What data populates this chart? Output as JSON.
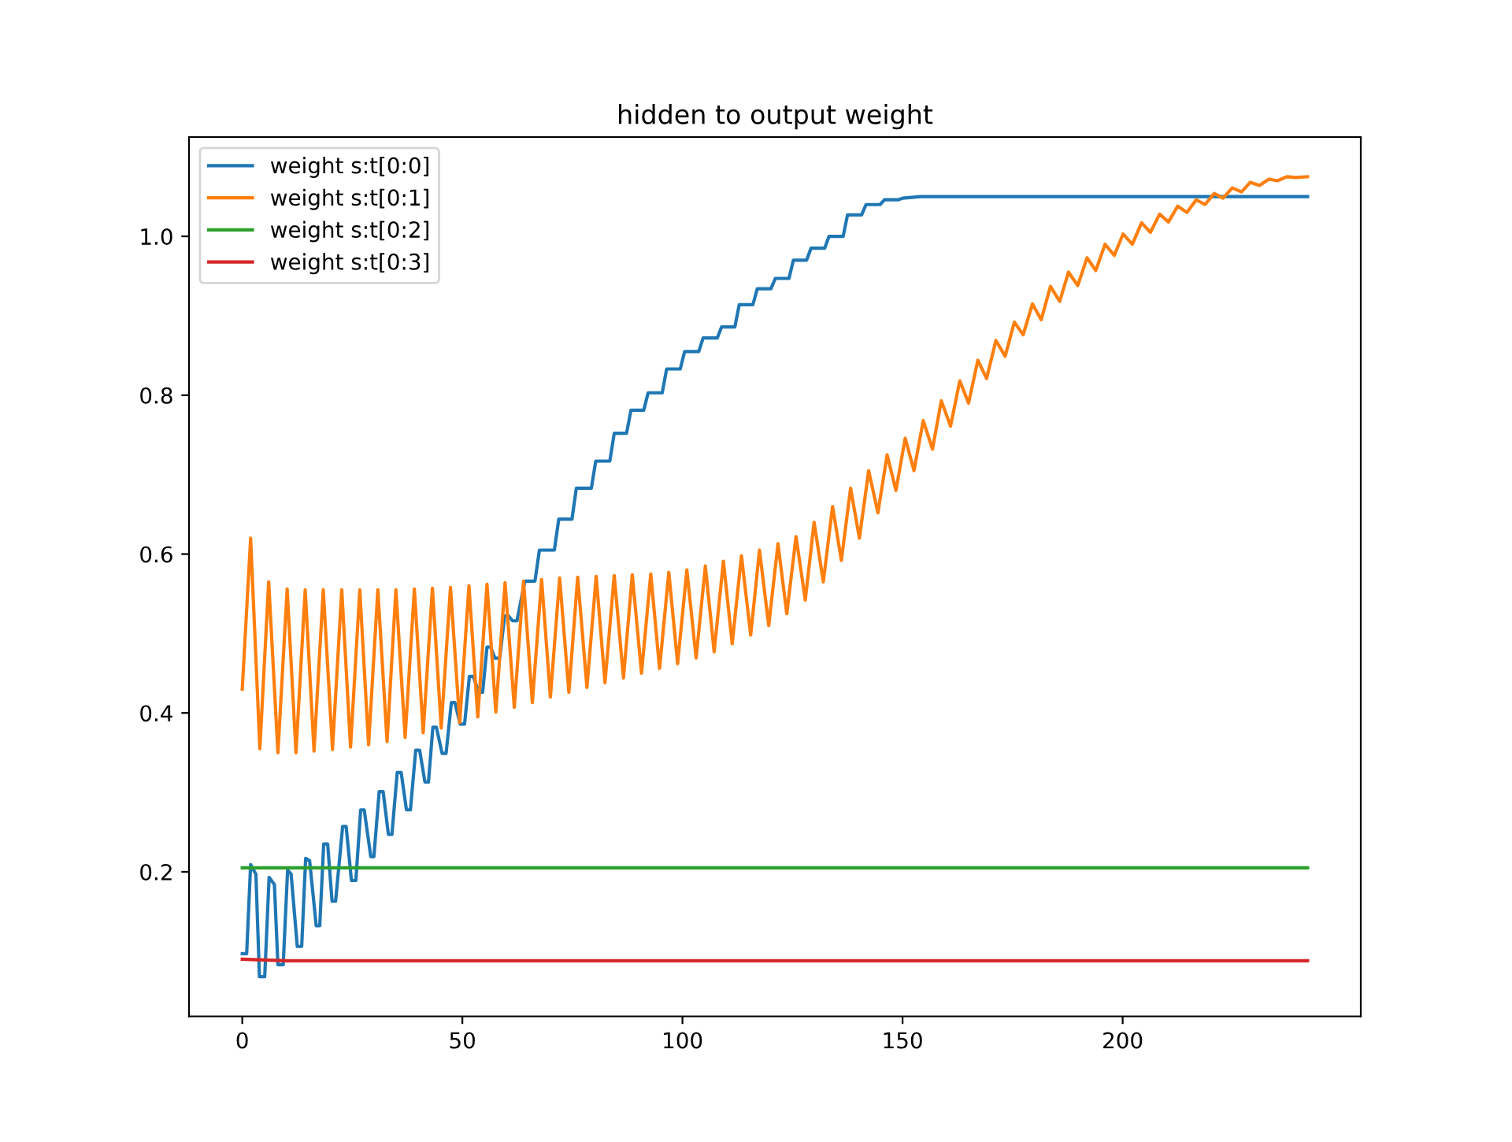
{
  "chart_data": {
    "type": "line",
    "title": "hidden to output weight",
    "xlim": [
      -12.1,
      254.1
    ],
    "ylim": [
      0.018,
      1.125
    ],
    "xticks": [
      0,
      50,
      100,
      150,
      200
    ],
    "yticks": [
      0.2,
      0.4,
      0.6,
      0.8,
      {
        "value": 1,
        "label": "1.0"
      }
    ],
    "grid": false,
    "legend": "top left",
    "marker": "none",
    "line_style": "solid",
    "series": [
      {
        "name": "weight s:t[0:0]",
        "color": "#1f77b4",
        "x": [
          0,
          1,
          1.9,
          3.1,
          3.9,
          5.1,
          6.1,
          7.3,
          8.1,
          9.3,
          10.3,
          11.1,
          12.5,
          13.5,
          14.4,
          15.3,
          16.8,
          17.6,
          18.5,
          19.4,
          20.4,
          21.2,
          22.8,
          23.6,
          24.8,
          25.8,
          26.9,
          27.7,
          29.2,
          29.9,
          31.1,
          32,
          33.2,
          34,
          35.2,
          36.1,
          37.3,
          38.2,
          39.4,
          40.3,
          41.5,
          42.3,
          43.3,
          44.1,
          45.4,
          46.3,
          47.5,
          48.3,
          49.5,
          50.5,
          51.6,
          52.5,
          53.7,
          54.6,
          55.6,
          56.4,
          57.4,
          58.5,
          59.6,
          60.5,
          61.4,
          62.4,
          64.2,
          66.5,
          67.5,
          70.9,
          71.9,
          74.9,
          75.9,
          79.3,
          80.3,
          83.5,
          84.5,
          87.3,
          88.3,
          91.2,
          92.2,
          95.4,
          96.4,
          99.5,
          100.5,
          103.7,
          104.7,
          107.9,
          108.9,
          111.9,
          112.9,
          116,
          117,
          120.1,
          121.1,
          124.2,
          125.2,
          128.2,
          129.2,
          132.3,
          133.3,
          136.5,
          137.5,
          140.7,
          141.7,
          144.9,
          145.9,
          149,
          150,
          154,
          242
        ],
        "values": [
          0.097,
          0.097,
          0.209,
          0.197,
          0.068,
          0.068,
          0.193,
          0.184,
          0.083,
          0.083,
          0.202,
          0.197,
          0.106,
          0.106,
          0.217,
          0.214,
          0.132,
          0.132,
          0.235,
          0.235,
          0.163,
          0.163,
          0.257,
          0.257,
          0.189,
          0.189,
          0.278,
          0.278,
          0.219,
          0.219,
          0.301,
          0.301,
          0.247,
          0.247,
          0.325,
          0.325,
          0.278,
          0.278,
          0.353,
          0.353,
          0.313,
          0.313,
          0.382,
          0.382,
          0.349,
          0.349,
          0.413,
          0.413,
          0.386,
          0.386,
          0.446,
          0.446,
          0.426,
          0.426,
          0.483,
          0.483,
          0.469,
          0.469,
          0.522,
          0.522,
          0.516,
          0.516,
          0.566,
          0.566,
          0.605,
          0.605,
          0.644,
          0.644,
          0.683,
          0.683,
          0.717,
          0.717,
          0.752,
          0.752,
          0.781,
          0.781,
          0.803,
          0.803,
          0.833,
          0.833,
          0.855,
          0.855,
          0.872,
          0.872,
          0.886,
          0.886,
          0.914,
          0.914,
          0.934,
          0.934,
          0.947,
          0.947,
          0.97,
          0.97,
          0.985,
          0.985,
          1.0,
          1.0,
          1.027,
          1.027,
          1.04,
          1.04,
          1.046,
          1.046,
          1.048,
          1.05,
          1.05
        ]
      },
      {
        "name": "weight s:t[0:1]",
        "color": "#ff7f0e",
        "x": [
          0,
          1.9,
          4.0,
          6.0,
          8.1,
          10.2,
          12.2,
          14.3,
          16.3,
          18.4,
          20.5,
          22.6,
          24.6,
          26.7,
          28.7,
          30.8,
          32.9,
          34.9,
          37.0,
          39.1,
          41.1,
          43.2,
          45.2,
          47.3,
          49.4,
          51.5,
          53.5,
          55.6,
          57.6,
          59.7,
          61.8,
          63.9,
          65.9,
          68.0,
          70.0,
          72.1,
          74.2,
          76.2,
          78.3,
          80.4,
          82.4,
          84.5,
          86.6,
          88.6,
          90.7,
          92.8,
          94.8,
          96.9,
          98.9,
          101.0,
          103.1,
          105.2,
          107.2,
          109.3,
          111.3,
          113.4,
          115.5,
          117.5,
          119.6,
          121.7,
          123.7,
          125.8,
          127.9,
          129.9,
          132.0,
          134.1,
          136.1,
          138.2,
          140.2,
          142.3,
          144.4,
          146.5,
          148.5,
          150.6,
          152.6,
          154.7,
          156.8,
          158.8,
          160.9,
          163.0,
          165.0,
          167.1,
          169.1,
          171.2,
          173.3,
          175.4,
          177.4,
          179.5,
          181.5,
          183.6,
          185.7,
          187.7,
          189.8,
          191.9,
          193.9,
          196.0,
          198.1,
          200.1,
          202.2,
          204.3,
          206.3,
          208.4,
          210.4,
          212.5,
          214.6,
          216.7,
          218.7,
          220.8,
          222.8,
          224.9,
          227.0,
          229.0,
          231.1,
          233.2,
          235.2,
          237.3,
          239.3,
          242
        ],
        "values": [
          0.43,
          0.62,
          0.355,
          0.565,
          0.35,
          0.556,
          0.35,
          0.555,
          0.352,
          0.555,
          0.354,
          0.555,
          0.357,
          0.555,
          0.36,
          0.555,
          0.364,
          0.555,
          0.369,
          0.556,
          0.375,
          0.557,
          0.381,
          0.558,
          0.388,
          0.56,
          0.395,
          0.562,
          0.401,
          0.564,
          0.407,
          0.566,
          0.413,
          0.568,
          0.42,
          0.57,
          0.426,
          0.571,
          0.432,
          0.572,
          0.438,
          0.573,
          0.444,
          0.574,
          0.45,
          0.575,
          0.456,
          0.577,
          0.462,
          0.58,
          0.469,
          0.585,
          0.477,
          0.591,
          0.487,
          0.598,
          0.498,
          0.605,
          0.51,
          0.613,
          0.525,
          0.622,
          0.542,
          0.64,
          0.565,
          0.66,
          0.592,
          0.683,
          0.62,
          0.705,
          0.652,
          0.725,
          0.68,
          0.746,
          0.705,
          0.768,
          0.732,
          0.793,
          0.761,
          0.818,
          0.79,
          0.844,
          0.821,
          0.869,
          0.849,
          0.892,
          0.876,
          0.915,
          0.895,
          0.937,
          0.918,
          0.955,
          0.938,
          0.973,
          0.957,
          0.99,
          0.976,
          1.003,
          0.99,
          1.017,
          1.005,
          1.028,
          1.018,
          1.038,
          1.03,
          1.046,
          1.04,
          1.054,
          1.048,
          1.061,
          1.056,
          1.068,
          1.064,
          1.072,
          1.07,
          1.075,
          1.074,
          1.075
        ]
      },
      {
        "name": "weight s:t[0:2]",
        "color": "#2ca02c",
        "x": [
          0,
          242
        ],
        "values": [
          0.205,
          0.205
        ]
      },
      {
        "name": "weight s:t[0:3]",
        "color": "#d62728",
        "x": [
          0,
          10,
          242
        ],
        "values": [
          0.09,
          0.088,
          0.088
        ]
      }
    ]
  }
}
